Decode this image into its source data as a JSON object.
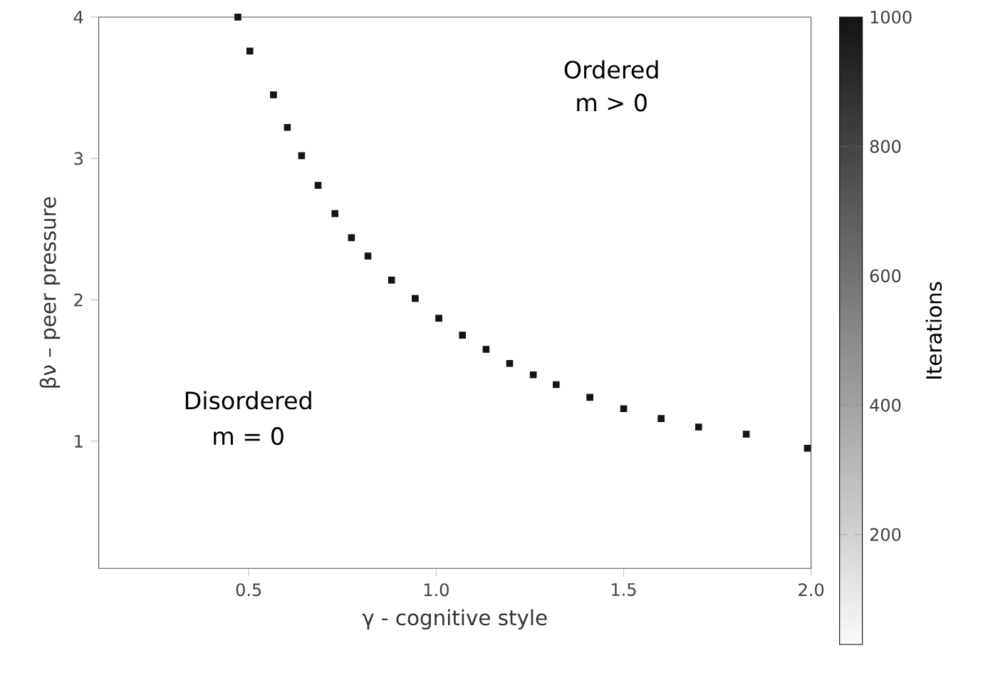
{
  "chart_data": {
    "type": "scatter",
    "xlabel": "γ - cognitive style",
    "ylabel": "βν – peer pressure",
    "clabel": "Iterations",
    "xlim": [
      0.1,
      2.0
    ],
    "ylim": [
      0.1,
      4
    ],
    "xticks": [
      0.5,
      {
        "value": 1,
        "label": "1.0"
      },
      1.5,
      {
        "value": 2,
        "label": "2.0"
      }
    ],
    "yticks": [
      1,
      2,
      3,
      4
    ],
    "clim": [
      30,
      1000
    ],
    "cticks": [
      200,
      400,
      600,
      800,
      1000
    ],
    "marker": "square",
    "grid": false,
    "x": [
      0.471,
      0.503,
      0.566,
      0.603,
      0.641,
      0.685,
      0.73,
      0.774,
      0.818,
      0.881,
      0.944,
      1.007,
      1.07,
      1.133,
      1.196,
      1.259,
      1.32,
      1.41,
      1.5,
      1.6,
      1.7,
      1.827,
      1.99
    ],
    "values": [
      4.0,
      3.76,
      3.45,
      3.22,
      3.02,
      2.81,
      2.61,
      2.44,
      2.31,
      2.14,
      2.01,
      1.87,
      1.75,
      1.65,
      1.55,
      1.47,
      1.4,
      1.31,
      1.23,
      1.16,
      1.1,
      1.05,
      0.95
    ],
    "cvalues": [
      1000,
      1000,
      1000,
      1000,
      1000,
      1000,
      1000,
      1000,
      1000,
      1000,
      1000,
      1000,
      1000,
      1000,
      1000,
      1000,
      1000,
      1000,
      1000,
      1000,
      1000,
      1000,
      1000
    ],
    "annotations": [
      "Ordered",
      "m > 0",
      "Disordered",
      "m = 0"
    ]
  }
}
